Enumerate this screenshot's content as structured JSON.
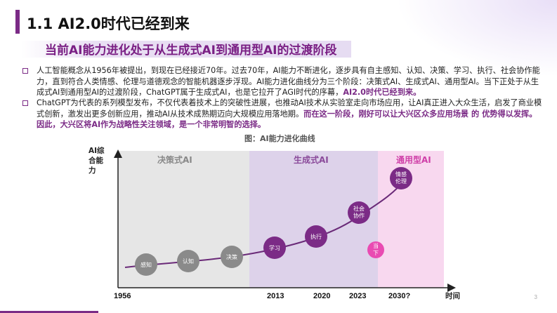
{
  "header": {
    "title": "1.1 AI2.0时代已经到来",
    "subtitle": "当前AI能力进化处于从生成式AI到通用型AI的过渡阶段"
  },
  "paragraphs": [
    {
      "text": "人工智能概念从1956年被提出，到现在已经接近70年。过去70年，AI能力不断进化，逐步具有自主感知、认知、决策、学习、执行、社会协作能力，直到符合人类情感、伦理与道德观念的智能机器逐步浮现。AI能力进化曲线分为三个阶段：决策式AI、生成式AI、通用型AI。当下正处于从生成式AI到通用型AI的过渡阶段，ChatGPT属于生成式AI，也是它拉开了AGI时代的序幕，",
      "highlight": "AI2.0时代已经到来。"
    },
    {
      "text": "ChatGPT为代表的系列模型发布，不仅代表着技术上的突破性进展，也推动AI技术从实验室走向市场应用，让AI真正进入大众生活，启发了商业模式创新，激发出更多创新应用，推动AI从技术成熟期迈向大规模应用落地期。",
      "highlight": "而在这一阶段，刚好可以让大兴区众多应用场景 的 优势得以发挥。因此，大兴区将AI作为战略性关注领域，是一个非常明智的选择。"
    }
  ],
  "chart_data": {
    "type": "line",
    "title": "图：AI能力进化曲线",
    "ylabel": "AI综合能力",
    "xlabel": "时间",
    "stages": [
      {
        "name": "决策式AI",
        "color": "#e6e6e6",
        "label_color": "#888888"
      },
      {
        "name": "生成式AI",
        "color": "#ddd2ea",
        "label_color": "#8a4a9a"
      },
      {
        "name": "通用型AI",
        "color": "#f8d8ef",
        "label_color": "#cf3fa8"
      }
    ],
    "x_ticks": [
      "1956",
      "2013",
      "2020",
      "2023",
      "2030?"
    ],
    "nodes": [
      {
        "label": "感知",
        "style": "gray"
      },
      {
        "label": "认知",
        "style": "gray"
      },
      {
        "label": "决策",
        "style": "gray"
      },
      {
        "label": "学习",
        "style": "purple"
      },
      {
        "label": "执行",
        "style": "purple"
      },
      {
        "label": "社会协作",
        "style": "purple"
      },
      {
        "label": "情感伦理",
        "style": "purple"
      },
      {
        "label": "当下",
        "style": "pink"
      }
    ],
    "colors": {
      "gray": "#8a8a8a",
      "purple": "#7b2b86",
      "pink": "#e94bb2"
    }
  },
  "page_number": "3"
}
